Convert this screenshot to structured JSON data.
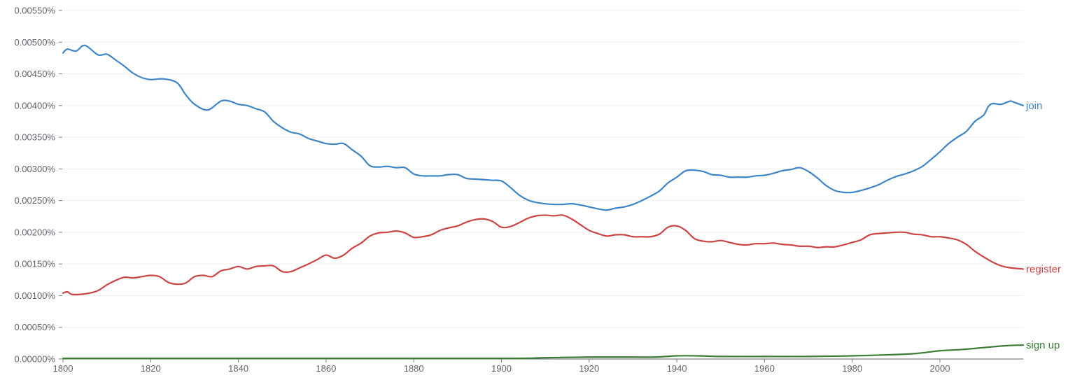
{
  "chart_data": {
    "type": "line",
    "xlim": [
      1800,
      2019
    ],
    "ylim": [
      0,
      0.0055
    ],
    "grid": true,
    "x_ticks": [
      1800,
      1820,
      1840,
      1860,
      1880,
      1900,
      1920,
      1940,
      1960,
      1980,
      2000
    ],
    "y_ticks": [
      {
        "value": 0.0,
        "label": "0.00000%"
      },
      {
        "value": 0.0005,
        "label": "0.00050%"
      },
      {
        "value": 0.001,
        "label": "0.00100%"
      },
      {
        "value": 0.0015,
        "label": "0.00150%"
      },
      {
        "value": 0.002,
        "label": "0.00200%"
      },
      {
        "value": 0.0025,
        "label": "0.00250%"
      },
      {
        "value": 0.003,
        "label": "0.00300%"
      },
      {
        "value": 0.0035,
        "label": "0.00350%"
      },
      {
        "value": 0.004,
        "label": "0.00400%"
      },
      {
        "value": 0.0045,
        "label": "0.00450%"
      },
      {
        "value": 0.005,
        "label": "0.00500%"
      },
      {
        "value": 0.0055,
        "label": "0.00550%"
      }
    ],
    "series": [
      {
        "name": "join",
        "color": "#3d85c6",
        "points": [
          [
            1800,
            0.00483
          ],
          [
            1801,
            0.00489
          ],
          [
            1803,
            0.00486
          ],
          [
            1805,
            0.00495
          ],
          [
            1808,
            0.0048
          ],
          [
            1810,
            0.00481
          ],
          [
            1812,
            0.00472
          ],
          [
            1814,
            0.00462
          ],
          [
            1816,
            0.00451
          ],
          [
            1818,
            0.00444
          ],
          [
            1820,
            0.00441
          ],
          [
            1823,
            0.00442
          ],
          [
            1826,
            0.00436
          ],
          [
            1828,
            0.00417
          ],
          [
            1830,
            0.00402
          ],
          [
            1833,
            0.00393
          ],
          [
            1836,
            0.00407
          ],
          [
            1838,
            0.00407
          ],
          [
            1840,
            0.00402
          ],
          [
            1842,
            0.004
          ],
          [
            1844,
            0.00395
          ],
          [
            1846,
            0.0039
          ],
          [
            1848,
            0.00375
          ],
          [
            1850,
            0.00365
          ],
          [
            1852,
            0.00358
          ],
          [
            1854,
            0.00355
          ],
          [
            1856,
            0.00348
          ],
          [
            1858,
            0.00344
          ],
          [
            1860,
            0.0034
          ],
          [
            1862,
            0.00339
          ],
          [
            1864,
            0.0034
          ],
          [
            1866,
            0.0033
          ],
          [
            1868,
            0.0032
          ],
          [
            1870,
            0.00305
          ],
          [
            1872,
            0.00303
          ],
          [
            1874,
            0.00304
          ],
          [
            1876,
            0.00302
          ],
          [
            1878,
            0.00302
          ],
          [
            1880,
            0.00292
          ],
          [
            1882,
            0.00289
          ],
          [
            1884,
            0.00289
          ],
          [
            1886,
            0.00289
          ],
          [
            1888,
            0.00291
          ],
          [
            1890,
            0.00291
          ],
          [
            1892,
            0.00285
          ],
          [
            1894,
            0.00284
          ],
          [
            1896,
            0.00283
          ],
          [
            1898,
            0.00282
          ],
          [
            1900,
            0.00281
          ],
          [
            1902,
            0.00271
          ],
          [
            1904,
            0.00259
          ],
          [
            1906,
            0.00251
          ],
          [
            1908,
            0.00247
          ],
          [
            1910,
            0.00245
          ],
          [
            1912,
            0.00244
          ],
          [
            1914,
            0.00244
          ],
          [
            1916,
            0.00245
          ],
          [
            1918,
            0.00243
          ],
          [
            1920,
            0.0024
          ],
          [
            1922,
            0.00237
          ],
          [
            1924,
            0.00235
          ],
          [
            1926,
            0.00238
          ],
          [
            1928,
            0.0024
          ],
          [
            1930,
            0.00244
          ],
          [
            1932,
            0.0025
          ],
          [
            1934,
            0.00257
          ],
          [
            1936,
            0.00265
          ],
          [
            1938,
            0.00278
          ],
          [
            1940,
            0.00287
          ],
          [
            1942,
            0.00297
          ],
          [
            1944,
            0.00298
          ],
          [
            1946,
            0.00296
          ],
          [
            1948,
            0.00291
          ],
          [
            1950,
            0.0029
          ],
          [
            1952,
            0.00287
          ],
          [
            1954,
            0.00287
          ],
          [
            1956,
            0.00287
          ],
          [
            1958,
            0.00289
          ],
          [
            1960,
            0.0029
          ],
          [
            1962,
            0.00293
          ],
          [
            1964,
            0.00297
          ],
          [
            1966,
            0.00299
          ],
          [
            1968,
            0.00302
          ],
          [
            1970,
            0.00296
          ],
          [
            1972,
            0.00286
          ],
          [
            1974,
            0.00274
          ],
          [
            1976,
            0.00266
          ],
          [
            1978,
            0.00263
          ],
          [
            1980,
            0.00263
          ],
          [
            1982,
            0.00266
          ],
          [
            1984,
            0.0027
          ],
          [
            1986,
            0.00275
          ],
          [
            1988,
            0.00282
          ],
          [
            1990,
            0.00288
          ],
          [
            1992,
            0.00292
          ],
          [
            1994,
            0.00297
          ],
          [
            1996,
            0.00304
          ],
          [
            1998,
            0.00315
          ],
          [
            2000,
            0.00327
          ],
          [
            2002,
            0.0034
          ],
          [
            2004,
            0.0035
          ],
          [
            2006,
            0.00359
          ],
          [
            2008,
            0.00375
          ],
          [
            2010,
            0.00385
          ],
          [
            2011,
            0.00398
          ],
          [
            2012,
            0.00403
          ],
          [
            2014,
            0.00402
          ],
          [
            2016,
            0.00407
          ],
          [
            2017,
            0.00405
          ],
          [
            2019,
            0.004
          ]
        ]
      },
      {
        "name": "register",
        "color": "#cc4444",
        "points": [
          [
            1800,
            0.00104
          ],
          [
            1801,
            0.00106
          ],
          [
            1802,
            0.00102
          ],
          [
            1804,
            0.00102
          ],
          [
            1806,
            0.00104
          ],
          [
            1808,
            0.00108
          ],
          [
            1810,
            0.00117
          ],
          [
            1812,
            0.00124
          ],
          [
            1814,
            0.00129
          ],
          [
            1816,
            0.00128
          ],
          [
            1818,
            0.0013
          ],
          [
            1820,
            0.00132
          ],
          [
            1822,
            0.0013
          ],
          [
            1824,
            0.00121
          ],
          [
            1826,
            0.00118
          ],
          [
            1828,
            0.0012
          ],
          [
            1830,
            0.0013
          ],
          [
            1832,
            0.00132
          ],
          [
            1834,
            0.0013
          ],
          [
            1836,
            0.00139
          ],
          [
            1838,
            0.00142
          ],
          [
            1840,
            0.00146
          ],
          [
            1842,
            0.00142
          ],
          [
            1844,
            0.00146
          ],
          [
            1846,
            0.00147
          ],
          [
            1848,
            0.00147
          ],
          [
            1850,
            0.00138
          ],
          [
            1852,
            0.00138
          ],
          [
            1854,
            0.00144
          ],
          [
            1856,
            0.0015
          ],
          [
            1858,
            0.00157
          ],
          [
            1860,
            0.00164
          ],
          [
            1862,
            0.00159
          ],
          [
            1864,
            0.00164
          ],
          [
            1866,
            0.00175
          ],
          [
            1868,
            0.00183
          ],
          [
            1870,
            0.00194
          ],
          [
            1872,
            0.00199
          ],
          [
            1874,
            0.002
          ],
          [
            1876,
            0.00202
          ],
          [
            1878,
            0.00199
          ],
          [
            1880,
            0.00192
          ],
          [
            1882,
            0.00193
          ],
          [
            1884,
            0.00196
          ],
          [
            1886,
            0.00203
          ],
          [
            1888,
            0.00207
          ],
          [
            1890,
            0.0021
          ],
          [
            1892,
            0.00216
          ],
          [
            1894,
            0.0022
          ],
          [
            1896,
            0.00221
          ],
          [
            1898,
            0.00217
          ],
          [
            1900,
            0.00208
          ],
          [
            1902,
            0.00209
          ],
          [
            1904,
            0.00215
          ],
          [
            1906,
            0.00222
          ],
          [
            1908,
            0.00226
          ],
          [
            1910,
            0.00227
          ],
          [
            1912,
            0.00226
          ],
          [
            1914,
            0.00227
          ],
          [
            1916,
            0.00221
          ],
          [
            1918,
            0.00212
          ],
          [
            1920,
            0.00203
          ],
          [
            1922,
            0.00198
          ],
          [
            1924,
            0.00194
          ],
          [
            1926,
            0.00196
          ],
          [
            1928,
            0.00196
          ],
          [
            1930,
            0.00193
          ],
          [
            1932,
            0.00193
          ],
          [
            1934,
            0.00193
          ],
          [
            1936,
            0.00197
          ],
          [
            1938,
            0.00208
          ],
          [
            1940,
            0.0021
          ],
          [
            1942,
            0.00203
          ],
          [
            1944,
            0.0019
          ],
          [
            1946,
            0.00186
          ],
          [
            1948,
            0.00185
          ],
          [
            1950,
            0.00187
          ],
          [
            1952,
            0.00184
          ],
          [
            1954,
            0.00181
          ],
          [
            1956,
            0.0018
          ],
          [
            1958,
            0.00182
          ],
          [
            1960,
            0.00182
          ],
          [
            1962,
            0.00183
          ],
          [
            1964,
            0.00181
          ],
          [
            1966,
            0.0018
          ],
          [
            1968,
            0.00178
          ],
          [
            1970,
            0.00178
          ],
          [
            1972,
            0.00176
          ],
          [
            1974,
            0.00177
          ],
          [
            1976,
            0.00177
          ],
          [
            1978,
            0.0018
          ],
          [
            1980,
            0.00184
          ],
          [
            1982,
            0.00188
          ],
          [
            1984,
            0.00196
          ],
          [
            1986,
            0.00198
          ],
          [
            1988,
            0.00199
          ],
          [
            1990,
            0.002
          ],
          [
            1992,
            0.002
          ],
          [
            1994,
            0.00197
          ],
          [
            1996,
            0.00196
          ],
          [
            1998,
            0.00193
          ],
          [
            2000,
            0.00193
          ],
          [
            2002,
            0.00191
          ],
          [
            2004,
            0.00188
          ],
          [
            2006,
            0.00181
          ],
          [
            2008,
            0.0017
          ],
          [
            2010,
            0.00161
          ],
          [
            2012,
            0.00153
          ],
          [
            2014,
            0.00147
          ],
          [
            2016,
            0.00144
          ],
          [
            2019,
            0.00142
          ]
        ]
      },
      {
        "name": "sign up",
        "color": "#3a7d34",
        "points": [
          [
            1800,
            1e-05
          ],
          [
            1850,
            1e-05
          ],
          [
            1900,
            1e-05
          ],
          [
            1910,
            2e-05
          ],
          [
            1920,
            3e-05
          ],
          [
            1930,
            3e-05
          ],
          [
            1935,
            3e-05
          ],
          [
            1940,
            5e-05
          ],
          [
            1945,
            5e-05
          ],
          [
            1950,
            4e-05
          ],
          [
            1960,
            4e-05
          ],
          [
            1970,
            4e-05
          ],
          [
            1980,
            5e-05
          ],
          [
            1990,
            7e-05
          ],
          [
            1995,
            9e-05
          ],
          [
            2000,
            0.00013
          ],
          [
            2005,
            0.00015
          ],
          [
            2010,
            0.00018
          ],
          [
            2015,
            0.00021
          ],
          [
            2019,
            0.00022
          ]
        ]
      }
    ]
  }
}
